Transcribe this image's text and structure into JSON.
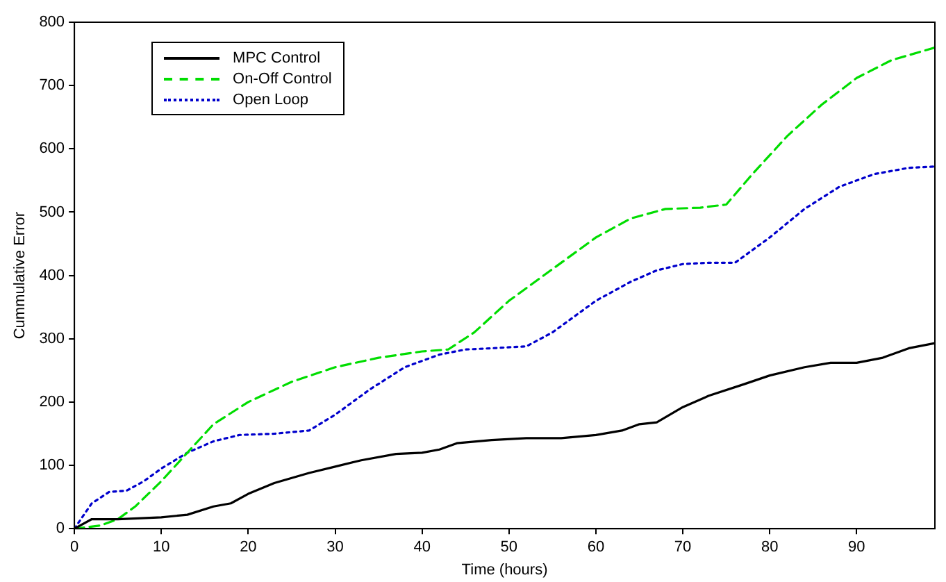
{
  "chart_data": {
    "type": "line",
    "xlabel": "Time (hours)",
    "ylabel": "Cummulative Error",
    "xlim": [
      0,
      99
    ],
    "ylim": [
      0,
      800
    ],
    "xticks": [
      0,
      10,
      20,
      30,
      40,
      50,
      60,
      70,
      80,
      90
    ],
    "yticks": [
      0,
      100,
      200,
      300,
      400,
      500,
      600,
      700,
      800
    ],
    "grid": false,
    "legend": "top left",
    "marker": "none",
    "series": [
      {
        "name": "MPC Control",
        "color": "#000000",
        "line_style": "solid",
        "x": [
          0,
          2,
          5,
          10,
          13,
          16,
          18,
          20,
          23,
          27,
          30,
          33,
          37,
          40,
          42,
          44,
          48,
          52,
          56,
          60,
          63,
          65,
          67,
          70,
          73,
          77,
          80,
          84,
          87,
          90,
          93,
          96,
          99
        ],
        "values": [
          0,
          15,
          15,
          18,
          22,
          35,
          40,
          55,
          72,
          88,
          98,
          108,
          118,
          120,
          125,
          135,
          140,
          143,
          143,
          148,
          155,
          165,
          168,
          192,
          210,
          228,
          242,
          255,
          262,
          262,
          270,
          285,
          293
        ]
      },
      {
        "name": "On-Off Control",
        "color": "#00dd00",
        "line_style": "dashed",
        "x": [
          0,
          3,
          5,
          7,
          10,
          13,
          16,
          20,
          25,
          30,
          35,
          40,
          43,
          46,
          50,
          55,
          60,
          64,
          68,
          72,
          75,
          78,
          82,
          86,
          90,
          94,
          99
        ],
        "values": [
          0,
          5,
          15,
          35,
          75,
          120,
          165,
          200,
          232,
          255,
          270,
          280,
          283,
          310,
          360,
          410,
          460,
          490,
          505,
          507,
          512,
          560,
          620,
          670,
          712,
          740,
          760
        ]
      },
      {
        "name": "Open Loop",
        "color": "#0000cc",
        "line_style": "dotted",
        "x": [
          0,
          2,
          4,
          6,
          8,
          10,
          13,
          16,
          19,
          23,
          27,
          30,
          34,
          38,
          42,
          45,
          48,
          52,
          55,
          60,
          64,
          67,
          70,
          73,
          76,
          80,
          84,
          88,
          92,
          96,
          99
        ],
        "values": [
          0,
          40,
          58,
          60,
          75,
          95,
          120,
          138,
          148,
          150,
          155,
          180,
          220,
          255,
          275,
          283,
          285,
          288,
          310,
          360,
          390,
          408,
          418,
          420,
          420,
          460,
          505,
          540,
          560,
          570,
          572
        ]
      }
    ]
  }
}
